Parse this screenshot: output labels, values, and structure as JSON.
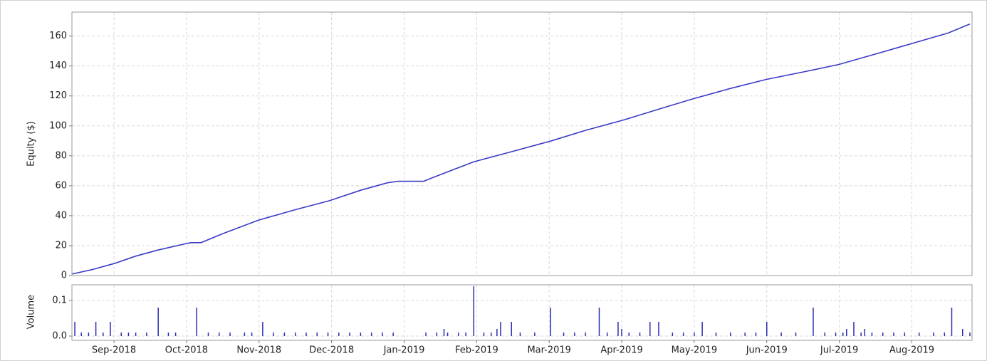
{
  "chart_data": [
    {
      "type": "line",
      "ylabel": "Equity ($)",
      "color": "#3a3ac8",
      "grid": true,
      "ylim": [
        0,
        176
      ],
      "yticks": [
        0,
        20,
        40,
        60,
        80,
        100,
        120,
        140,
        160
      ],
      "x": [
        0.42,
        0.7,
        1.0,
        1.3,
        1.6,
        1.96,
        2.06,
        2.2,
        2.5,
        2.99,
        3.5,
        3.97,
        4.4,
        4.77,
        4.92,
        5.27,
        5.37,
        5.96,
        6.5,
        7.03,
        7.5,
        8.03,
        8.5,
        8.98,
        9.5,
        9.99,
        10.5,
        10.99,
        11.5,
        12.0,
        12.5,
        12.8
      ],
      "values": [
        1,
        4,
        8,
        13,
        17,
        21,
        22,
        22,
        28,
        37,
        44,
        50,
        57,
        62,
        63,
        63,
        65,
        76,
        83,
        90,
        97,
        104,
        111,
        118,
        125,
        131,
        136,
        141,
        148,
        155,
        162,
        168
      ]
    },
    {
      "type": "bar",
      "ylabel": "Volume",
      "color": "#2c2cb4",
      "grid": true,
      "ylim": [
        -0.012,
        0.144
      ],
      "yticks": [
        {
          "value": 0,
          "label": "0.0"
        },
        0.1
      ],
      "xlim": [
        0.42,
        12.83
      ],
      "xticks": [
        {
          "value": 1,
          "label": "Sep-2018"
        },
        {
          "value": 2,
          "label": "Oct-2018"
        },
        {
          "value": 3,
          "label": "Nov-2018"
        },
        {
          "value": 4,
          "label": "Dec-2018"
        },
        {
          "value": 5,
          "label": "Jan-2019"
        },
        {
          "value": 6,
          "label": "Feb-2019"
        },
        {
          "value": 7,
          "label": "Mar-2019"
        },
        {
          "value": 8,
          "label": "Apr-2019"
        },
        {
          "value": 9,
          "label": "May-2019"
        },
        {
          "value": 10,
          "label": "Jun-2019"
        },
        {
          "value": 11,
          "label": "Jul-2019"
        },
        {
          "value": 12,
          "label": "Aug-2019"
        }
      ],
      "x": [
        0.46,
        0.75,
        0.95,
        1.61,
        2.14,
        3.05,
        5.96,
        6.33,
        6.48,
        7.02,
        7.69,
        7.95,
        8.39,
        8.51,
        9.11,
        10.0,
        10.64,
        11.2,
        12.55,
        0.55,
        0.65,
        0.85,
        1.1,
        1.2,
        1.3,
        1.45,
        1.75,
        1.85,
        2.3,
        2.45,
        2.6,
        2.8,
        2.9,
        3.2,
        3.35,
        3.5,
        3.65,
        3.8,
        3.95,
        4.1,
        4.25,
        4.4,
        4.55,
        4.7,
        4.85,
        5.3,
        5.45,
        5.6,
        5.75,
        5.85,
        6.1,
        6.2,
        6.6,
        6.8,
        7.2,
        7.35,
        7.5,
        7.8,
        8.1,
        8.25,
        8.7,
        8.85,
        9.0,
        9.3,
        9.5,
        9.7,
        9.85,
        10.2,
        10.4,
        10.8,
        10.95,
        11.05,
        11.3,
        11.45,
        11.6,
        11.75,
        11.9,
        12.1,
        12.3,
        12.45,
        12.8,
        5.55,
        6.28,
        8.0,
        11.1,
        11.35,
        12.7
      ],
      "values": [
        0.04,
        0.04,
        0.04,
        0.08,
        0.08,
        0.04,
        0.14,
        0.04,
        0.04,
        0.08,
        0.08,
        0.04,
        0.04,
        0.04,
        0.04,
        0.04,
        0.08,
        0.04,
        0.08,
        0.01,
        0.01,
        0.01,
        0.01,
        0.01,
        0.01,
        0.01,
        0.01,
        0.01,
        0.01,
        0.01,
        0.01,
        0.01,
        0.01,
        0.01,
        0.01,
        0.01,
        0.01,
        0.01,
        0.01,
        0.01,
        0.01,
        0.01,
        0.01,
        0.01,
        0.01,
        0.01,
        0.01,
        0.01,
        0.01,
        0.01,
        0.01,
        0.01,
        0.01,
        0.01,
        0.01,
        0.01,
        0.01,
        0.01,
        0.01,
        0.01,
        0.01,
        0.01,
        0.01,
        0.01,
        0.01,
        0.01,
        0.01,
        0.01,
        0.01,
        0.01,
        0.01,
        0.01,
        0.01,
        0.01,
        0.01,
        0.01,
        0.01,
        0.01,
        0.01,
        0.01,
        0.01,
        0.02,
        0.02,
        0.02,
        0.02,
        0.02,
        0.02
      ]
    }
  ]
}
